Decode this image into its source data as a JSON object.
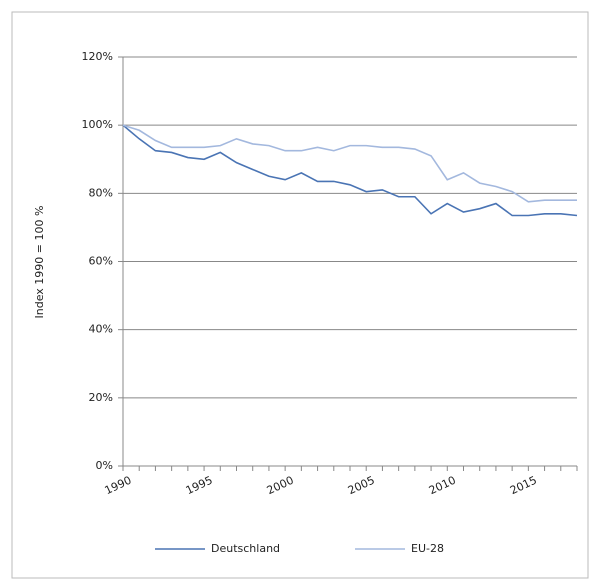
{
  "chart_data": {
    "type": "line",
    "y_label": "Index 1990 = 100 %",
    "x": [
      1990,
      1991,
      1992,
      1993,
      1994,
      1995,
      1996,
      1997,
      1998,
      1999,
      2000,
      2001,
      2002,
      2003,
      2004,
      2005,
      2006,
      2007,
      2008,
      2009,
      2010,
      2011,
      2012,
      2013,
      2014,
      2015,
      2016,
      2017,
      2018
    ],
    "series": [
      {
        "name": "Deutschland",
        "color": "#4a74b4",
        "values": [
          100,
          96,
          92.5,
          92,
          90.5,
          90,
          92,
          89,
          87,
          85,
          84,
          86,
          83.5,
          83.5,
          82.5,
          80.5,
          81,
          79,
          79,
          74,
          77,
          74.5,
          75.5,
          77,
          73.5,
          73.5,
          74,
          74,
          73.5
        ]
      },
      {
        "name": "EU-28",
        "color": "#a3b8de",
        "values": [
          100,
          98.5,
          95.5,
          93.5,
          93.5,
          93.5,
          94,
          96,
          94.5,
          94,
          92.5,
          92.5,
          93.5,
          92.5,
          94,
          94,
          93.5,
          93.5,
          93,
          91,
          84,
          86,
          83,
          82,
          80.5,
          77.5,
          78,
          78,
          78
        ]
      }
    ],
    "xlim": [
      1990,
      2018
    ],
    "xticks": [
      1990,
      1995,
      2000,
      2005,
      2010,
      2015
    ],
    "ylim": [
      0,
      120
    ],
    "yticks": [
      {
        "value": 0,
        "label": "0%"
      },
      {
        "value": 20,
        "label": "20%"
      },
      {
        "value": 40,
        "label": "40%"
      },
      {
        "value": 60,
        "label": "60%"
      },
      {
        "value": 80,
        "label": "80%"
      },
      {
        "value": 100,
        "label": "100%"
      },
      {
        "value": 120,
        "label": "120%"
      }
    ],
    "grid": true,
    "legend": "bottom"
  }
}
